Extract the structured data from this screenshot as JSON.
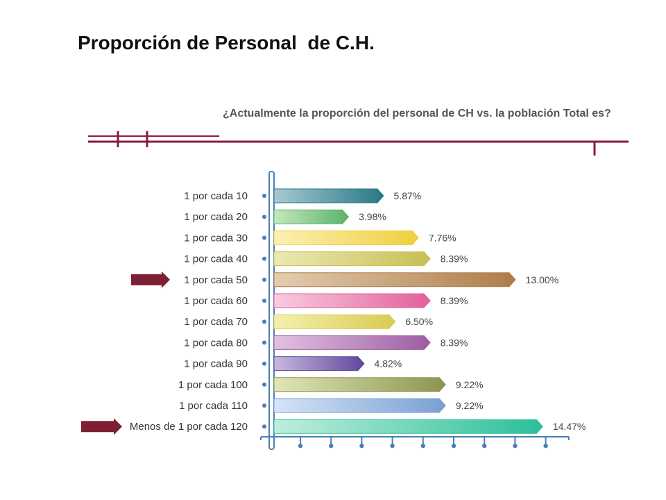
{
  "slide": {
    "title": "Proporción de Personal  de C.H.",
    "question": "¿Actualmente la proporción del personal de CH vs. la población Total es?"
  },
  "colors": {
    "rule": "#8b1a3a",
    "arrow": "#7d1f35",
    "axis": "#4a7fb5",
    "axis_dot": "#4a7fb5"
  },
  "chart_data": {
    "type": "bar",
    "orientation": "horizontal",
    "categories": [
      "1 por cada 10",
      "1 por cada 20",
      "1 por cada 30",
      "1 por cada 40",
      "1 por cada 50",
      "1 por cada 60",
      "1 por cada 70",
      "1 por cada 80",
      "1 por cada 90",
      "1 por cada 100",
      "1 por cada 110",
      "Menos de 1 por cada 120"
    ],
    "values": [
      5.87,
      3.98,
      7.76,
      8.39,
      13.0,
      8.39,
      6.5,
      8.39,
      4.82,
      9.22,
      9.22,
      14.47
    ],
    "value_labels": [
      "5.87%",
      "3.98%",
      "7.76%",
      "8.39%",
      "13.00%",
      "8.39%",
      "6.50%",
      "8.39%",
      "4.82%",
      "9.22%",
      "9.22%",
      "14.47%"
    ],
    "bar_colors": [
      [
        "#a8c9d2",
        "#2a7887"
      ],
      [
        "#c5e8bf",
        "#5cb36a"
      ],
      [
        "#fbf1b5",
        "#f0cf3c"
      ],
      [
        "#ece9b4",
        "#c7c054"
      ],
      [
        "#e4cdb0",
        "#ad7d4a"
      ],
      [
        "#f8cde0",
        "#e2619b"
      ],
      [
        "#f5f0b0",
        "#d9cb52"
      ],
      [
        "#e2c2e0",
        "#9d5ea3"
      ],
      [
        "#c6b9e0",
        "#62489b"
      ],
      [
        "#e1e6b8",
        "#8c9650"
      ],
      [
        "#d6e4f6",
        "#79a0d4"
      ],
      [
        "#bfeedd",
        "#2dbf9a"
      ]
    ],
    "highlighted": [
      "1 por cada 50",
      "Menos de 1 por cada 120"
    ],
    "xlim": [
      0,
      15
    ],
    "x_tick_count": 9,
    "xlabel": "",
    "ylabel": "",
    "grid": false,
    "legend": "none"
  }
}
